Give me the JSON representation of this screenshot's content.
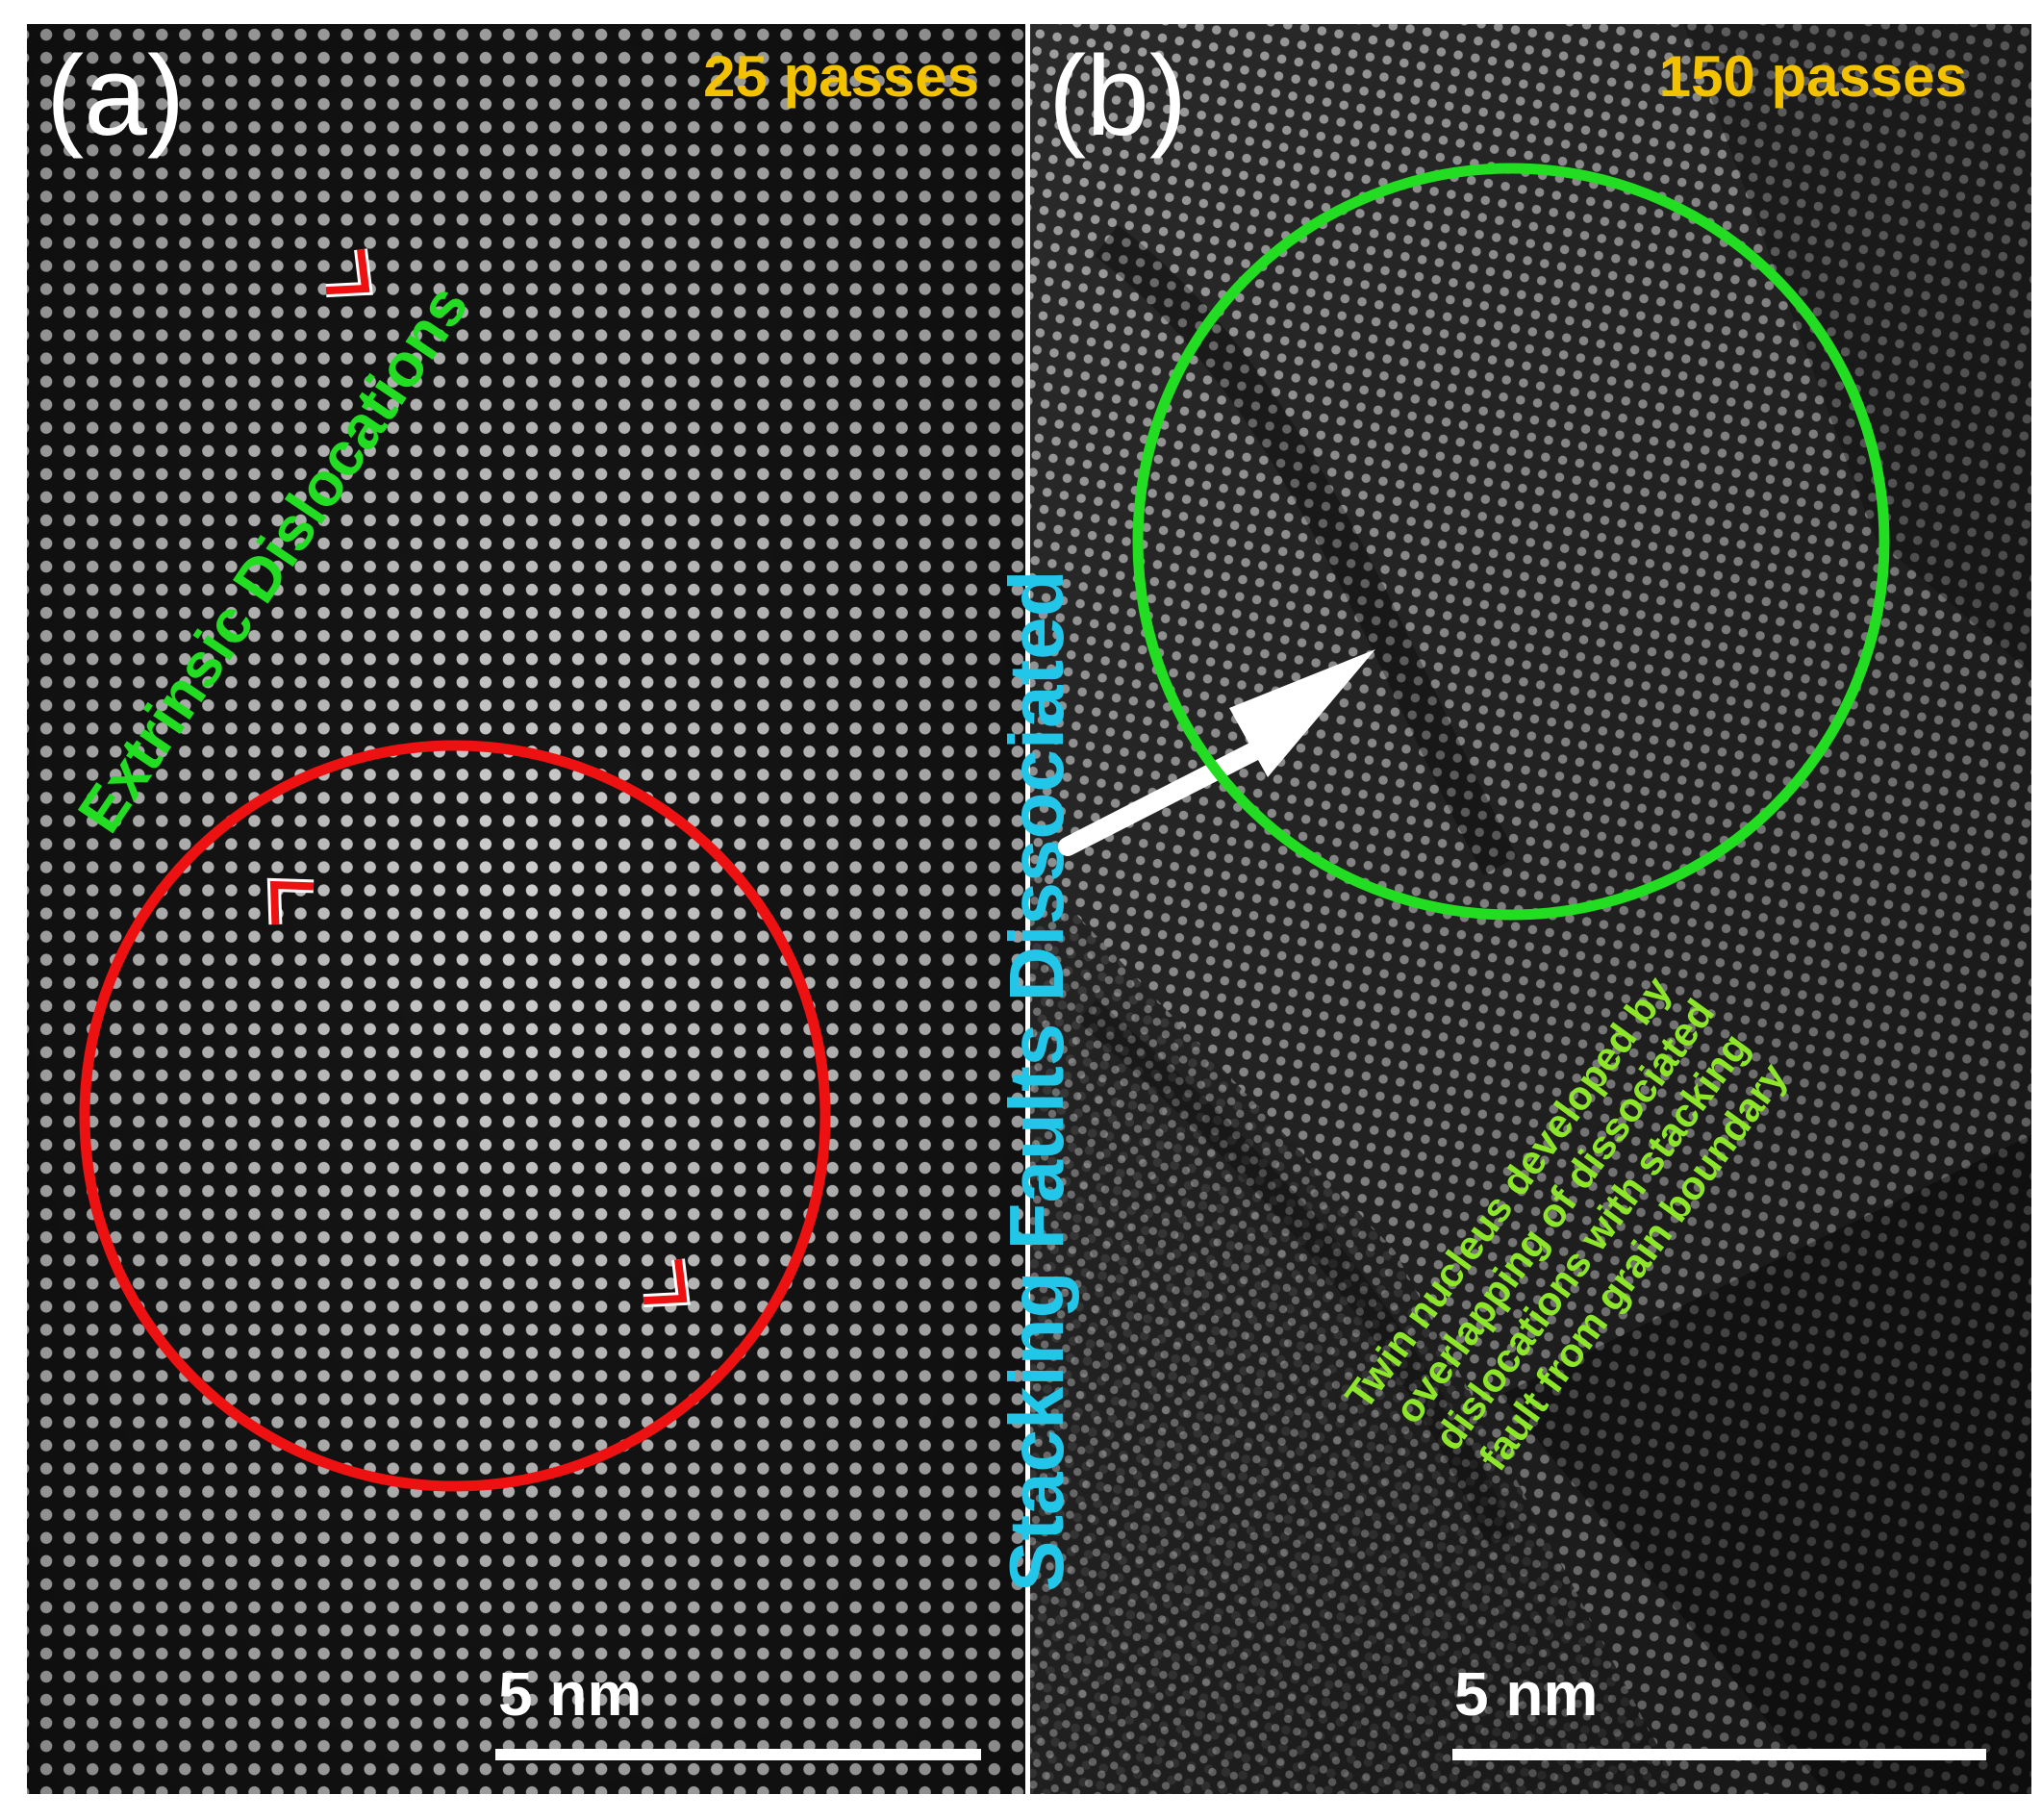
{
  "panel_a": {
    "label": "(a)",
    "passes": "25 passes",
    "annotation": "Extrinsic Dislocations",
    "scale_bar": "5 nm"
  },
  "panel_b": {
    "label": "(b)",
    "passes": "150 passes",
    "annotation_lines": [
      "Twin nucleus developed by",
      "overlapping of dissociated",
      "dislocations with stacking",
      "fault from grain boundary"
    ],
    "scale_bar": "5 nm"
  },
  "center_label": "Stacking Faults Dissociated",
  "colors": {
    "passes_text": "#f2c200",
    "panel_label": "#ffffff",
    "extrinsic_text": "#22dd22",
    "red_circle": "#ee1111",
    "green_circle": "#22dd22",
    "center_text": "#22c6e8",
    "twin_text": "#8ee62a",
    "arrow": "#ffffff",
    "scale_bar": "#ffffff"
  }
}
